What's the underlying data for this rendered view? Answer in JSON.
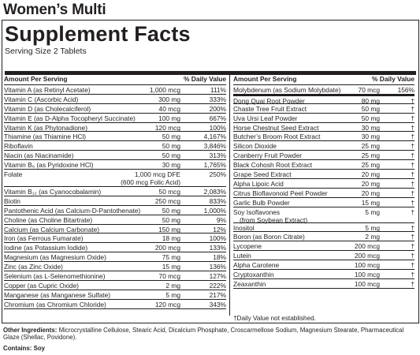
{
  "product": {
    "title": "Women’s Multi"
  },
  "panel": {
    "title": "Supplement Facts",
    "serving_size": "Serving Size 2 Tablets",
    "header_amount": "Amount Per Serving",
    "header_dv": "% Daily Value"
  },
  "left_rows": [
    {
      "name": "Vitamin A (as Retinyl Acetate)",
      "amount": "1,000 mcg",
      "dv": "111%"
    },
    {
      "name": "Vitamin C (Ascorbic Acid)",
      "amount": "300 mg",
      "dv": "333%"
    },
    {
      "name": "Vitamin D (as Cholecalciferol)",
      "amount": "40 mcg",
      "dv": "200%"
    },
    {
      "name": "Vitamin E (as D-Alpha Tocopheryl Succinate)",
      "amount": "100 mg",
      "dv": "667%"
    },
    {
      "name": "Vitamin K (as Phytonadione)",
      "amount": "120 mcg",
      "dv": "100%"
    },
    {
      "name": "Thiamine (as Thiamine HCl)",
      "amount": "50 mg",
      "dv": "4,167%"
    },
    {
      "name": "Riboflavin",
      "amount": "50 mg",
      "dv": "3,846%"
    },
    {
      "name": "Niacin (as Niacinamide)",
      "amount": "50 mg",
      "dv": "313%"
    },
    {
      "name": "Vitamin B₆ (as Pyridoxine HCl)",
      "amount": "30 mg",
      "dv": "1,765%"
    },
    {
      "name": "Folate",
      "amount": "1,000 mcg DFE",
      "amount2": "(600 mcg Folic Acid)",
      "dv": "250%"
    },
    {
      "name": "Vitamin B₁₂ (as Cyanocobalamin)",
      "amount": "50 mcg",
      "dv": "2,083%"
    },
    {
      "name": "Biotin",
      "amount": "250 mcg",
      "dv": "833%"
    },
    {
      "name": "Pantothenic Acid (as Calcium-D-Pantothenate)",
      "amount": "50 mg",
      "dv": "1,000%"
    },
    {
      "name": "Choline (as Choline Bitartrate)",
      "amount": "50 mg",
      "dv": "9%"
    },
    {
      "name": "Calcium (as Calcium Carbonate)",
      "amount": "150 mg",
      "dv": "12%"
    },
    {
      "name": "Iron (as Ferrous Fumarate)",
      "amount": "18 mg",
      "dv": "100%"
    },
    {
      "name": "Iodine (as Potassium Iodide)",
      "amount": "200 mcg",
      "dv": "133%"
    },
    {
      "name": "Magnesium (as Magnesium Oxide)",
      "amount": "75 mg",
      "dv": "18%"
    },
    {
      "name": "Zinc (as Zinc Oxide)",
      "amount": "15 mg",
      "dv": "136%"
    },
    {
      "name": "Selenium (as L-Selenomethionine)",
      "amount": "70 mcg",
      "dv": "127%"
    },
    {
      "name": "Copper (as Cupric Oxide)",
      "amount": "2 mg",
      "dv": "222%"
    },
    {
      "name": "Manganese (as Manganese Sulfate)",
      "amount": "5 mg",
      "dv": "217%"
    },
    {
      "name": "Chromium (as Chromium Chloride)",
      "amount": "120 mcg",
      "dv": "343%"
    }
  ],
  "right_rows": [
    {
      "name": "Molybdenum (as Sodium Molybdate)",
      "amount": "70 mcg",
      "dv": "156%"
    },
    {
      "name": "Dong Quai Root Powder",
      "amount": "80 mg",
      "dv": "†"
    },
    {
      "name": "Chaste Tree Fruit Extract",
      "amount": "50 mg",
      "dv": "†"
    },
    {
      "name": "Uva Ursi Leaf Powder",
      "amount": "50 mg",
      "dv": "†"
    },
    {
      "name": "Horse Chestnut Seed Extract",
      "amount": "30 mg",
      "dv": "†"
    },
    {
      "name": "Butcher’s Broom Root Extract",
      "amount": "30 mg",
      "dv": "†"
    },
    {
      "name": "Silicon Dioxide",
      "amount": "25 mg",
      "dv": "†"
    },
    {
      "name": "Cranberry Fruit Powder",
      "amount": "25 mg",
      "dv": "†"
    },
    {
      "name": "Black Cohosh Root Extract",
      "amount": "25 mg",
      "dv": "†"
    },
    {
      "name": "Grape Seed Extract",
      "amount": "20 mg",
      "dv": "†"
    },
    {
      "name": "Alpha Lipoic Acid",
      "amount": "20 mg",
      "dv": "†"
    },
    {
      "name": "Citrus Bioflavonoid Peel Powder",
      "amount": "20 mg",
      "dv": "†"
    },
    {
      "name": "Garlic Bulb Powder",
      "amount": "15 mg",
      "dv": "†"
    },
    {
      "name": "Soy Isoflavones",
      "name2": "(from Soybean Extract)",
      "amount": "5 mg",
      "dv": "†"
    },
    {
      "name": "Inositol",
      "amount": "5 mg",
      "dv": "†"
    },
    {
      "name": "Boron (as Boron Citrate)",
      "amount": "2 mg",
      "dv": "†"
    },
    {
      "name": "Lycopene",
      "amount": "200 mcg",
      "dv": "†"
    },
    {
      "name": "Lutein",
      "amount": "200 mcg",
      "dv": "†"
    },
    {
      "name": "Alpha Carotene",
      "amount": "100 mcg",
      "dv": "†"
    },
    {
      "name": "Cryptoxanthin",
      "amount": "100 mcg",
      "dv": "†"
    },
    {
      "name": "Zeaxanthin",
      "amount": "100 mcg",
      "dv": "†"
    }
  ],
  "footnote": "†Daily Value not established.",
  "other_ingredients": {
    "label": "Other Ingredients:",
    "text": " Microcrystalline Cellulose, Stearic Acid, Dicalcium Phosphate, Croscarmellose Sodium, Magnesium Stearate, Pharmaceutical Glaze (Shellac, Povidone)."
  },
  "contains": "Contains: Soy"
}
